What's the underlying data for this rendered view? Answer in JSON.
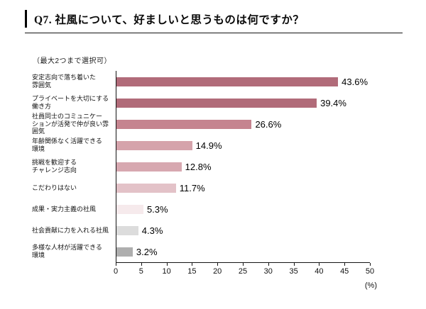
{
  "page": {
    "title": "Q7. 社風について、好ましいと思うものは何ですか？",
    "note": "（最大2つまで選択可）"
  },
  "chart_data": {
    "type": "bar",
    "orientation": "horizontal",
    "title": "Q7. 社風について、好ましいと思うものは何ですか？",
    "subtitle": "（最大2つまで選択可）",
    "categories": [
      "安定志向で落ち着いた\n雰囲気",
      "プライベートを大切にする\n働き方",
      "社員同士のコミュニケー\nションが活発で仲が良い雰囲気",
      "年齢関係なく活躍できる\n環境",
      "挑戦を歓迎する\nチャレンジ志向",
      "こだわりはない",
      "成果・実力主義の社風",
      "社会貢献に力を入れる社風",
      "多様な人材が活躍できる\n環境"
    ],
    "values": [
      43.6,
      39.4,
      26.6,
      14.9,
      12.8,
      11.7,
      5.3,
      4.3,
      3.2
    ],
    "value_labels": [
      "43.6%",
      "39.4%",
      "26.6%",
      "14.9%",
      "12.8%",
      "11.7%",
      "5.3%",
      "4.3%",
      "3.2%"
    ],
    "bar_colors": [
      "#b16b79",
      "#b16b79",
      "#c5848f",
      "#d5a3ab",
      "#d7a8b0",
      "#e3c2c8",
      "#f6eaec",
      "#dcdcdc",
      "#aeaeae"
    ],
    "xlim": [
      0,
      50
    ],
    "xticks": [
      0,
      5,
      10,
      15,
      20,
      25,
      30,
      35,
      40,
      45,
      50
    ],
    "xlabel": "(%)",
    "grid": false,
    "legend": false
  }
}
